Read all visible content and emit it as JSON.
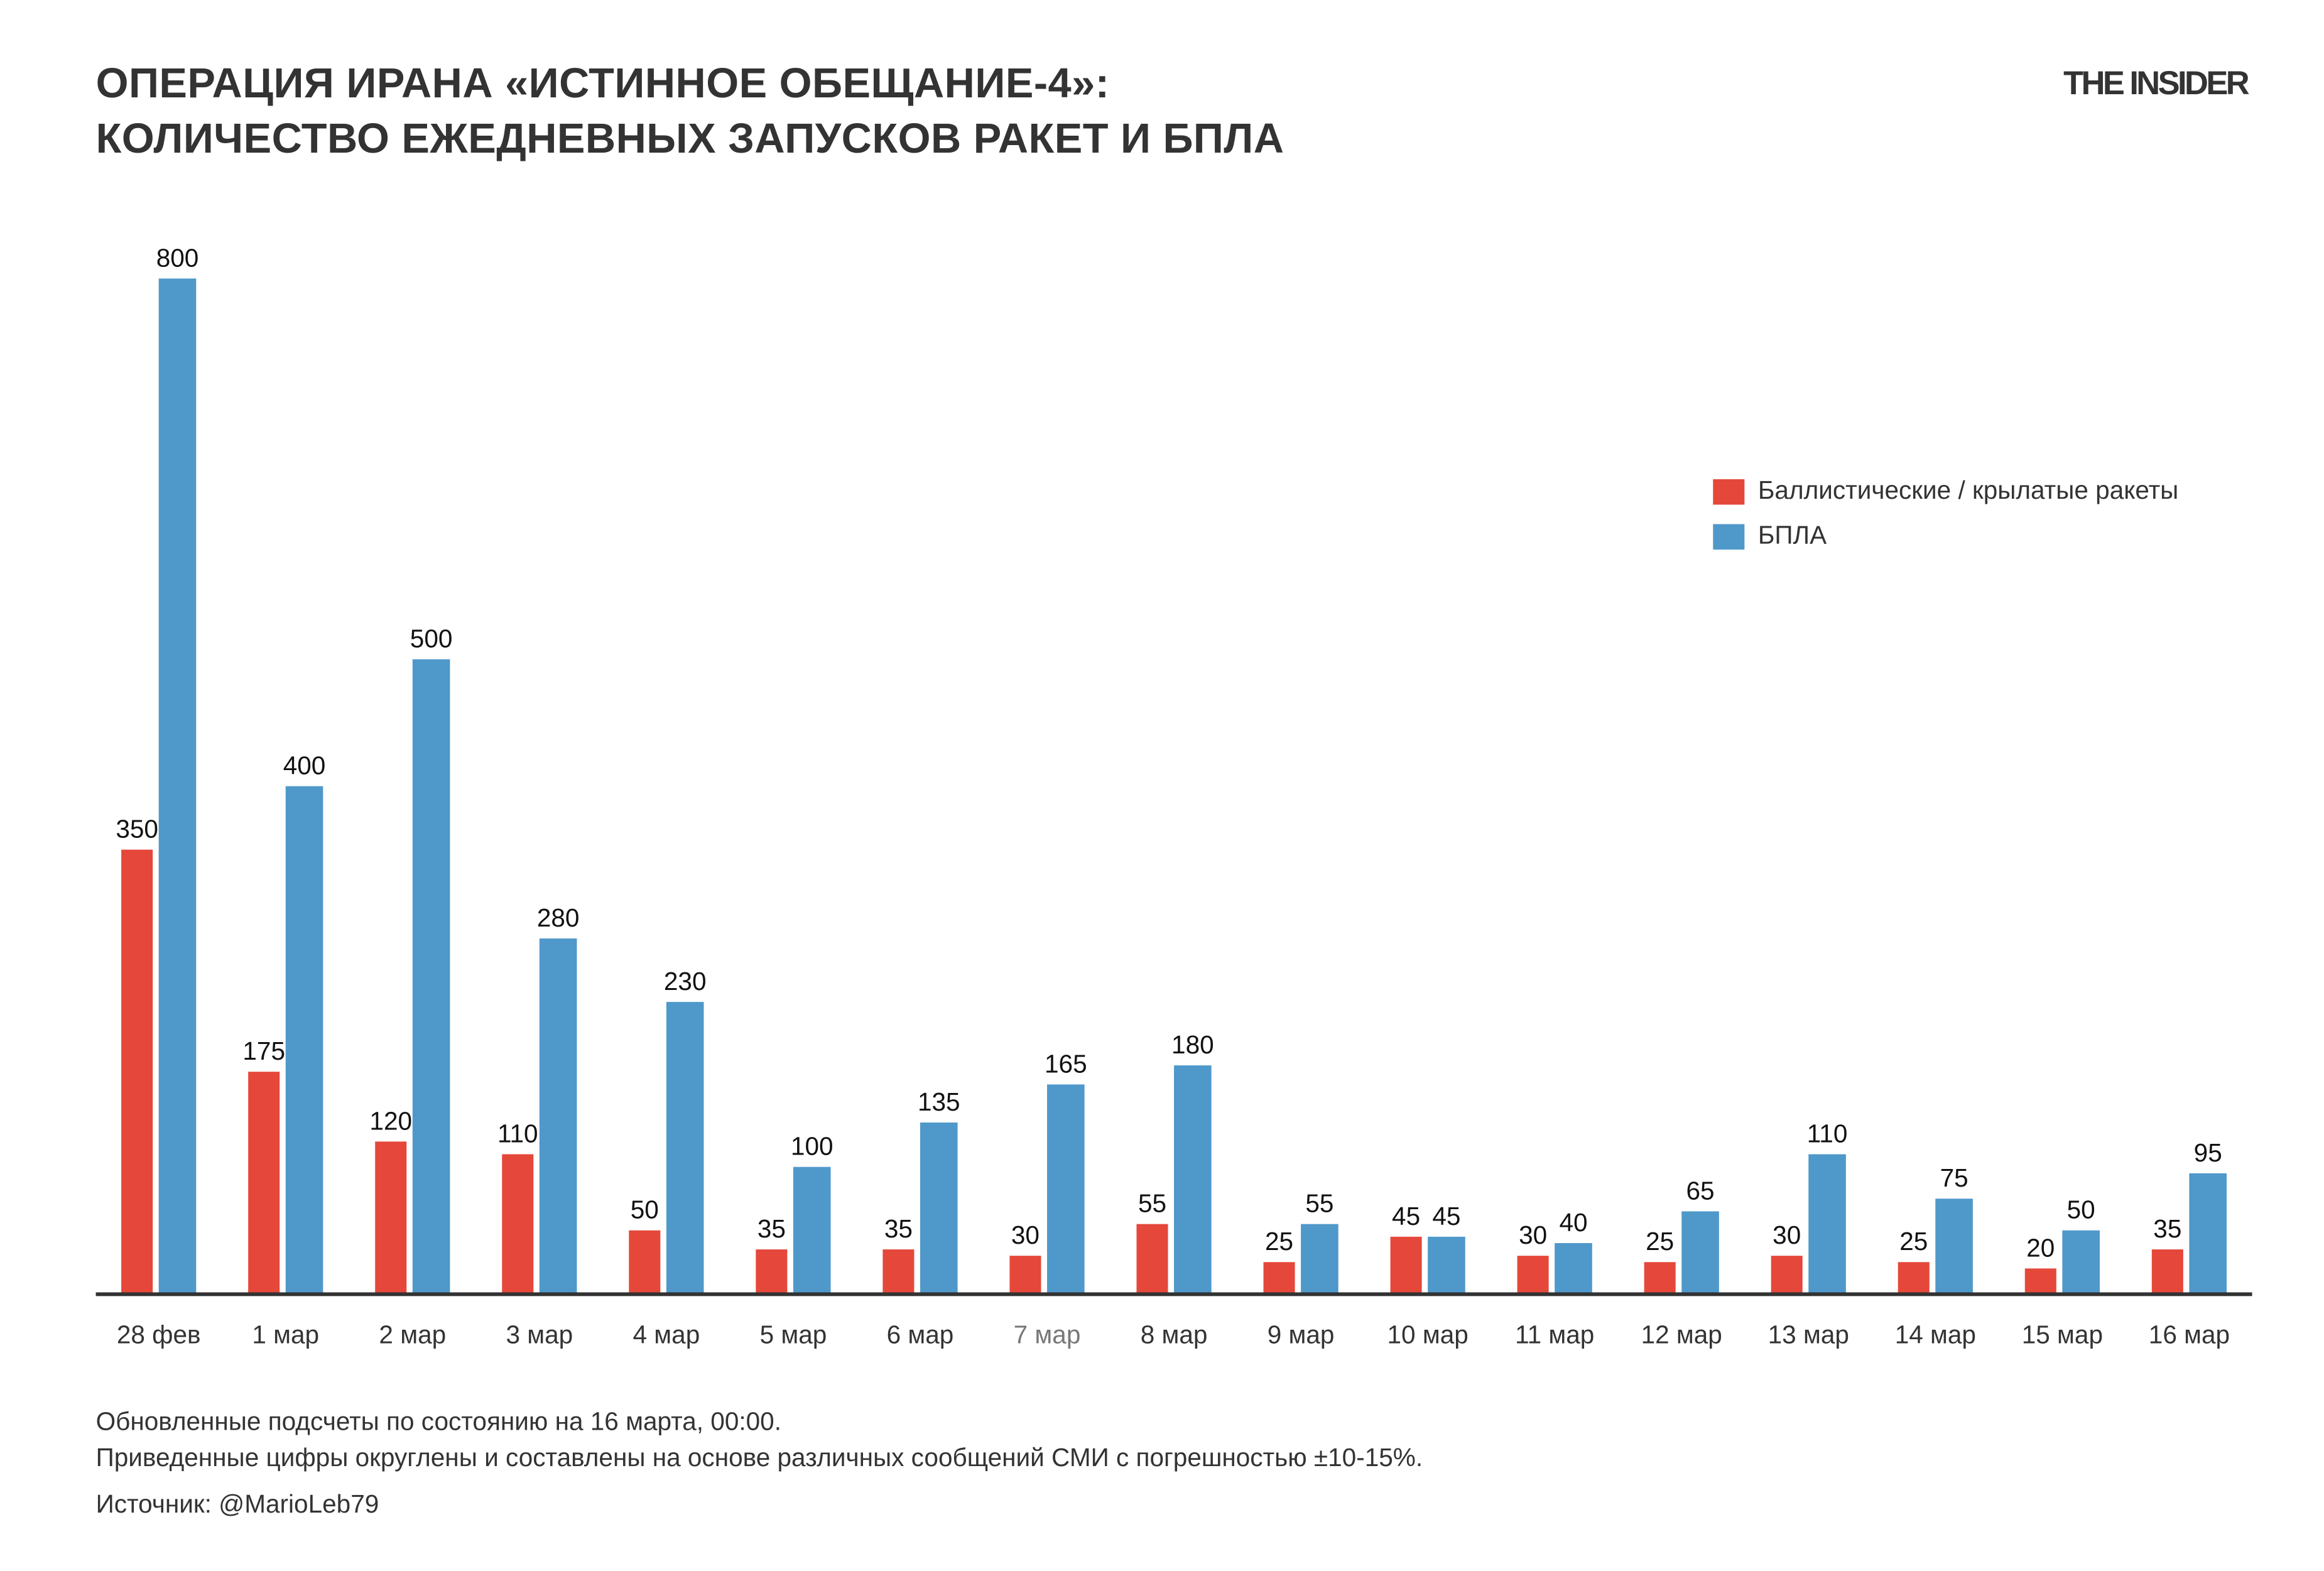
{
  "header": {
    "title_line1": "ОПЕРАЦИЯ ИРАНА «ИСТИННОЕ ОБЕЩАНИЕ-4»:",
    "title_line2": "КОЛИЧЕСТВО ЕЖЕДНЕВНЫХ ЗАПУСКОВ РАКЕТ И БПЛА",
    "logo": "THE INSIDER"
  },
  "footer": {
    "note1": "Обновленные подсчеты по состоянию на 16 марта, 00:00.",
    "note2": "Приведенные цифры округлены и составлены на основе различных сообщений СМИ с погрешностью ±10-15%.",
    "source": "Источник: @MarioLeb79"
  },
  "chart_data": {
    "type": "bar",
    "title": "ОПЕРАЦИЯ ИРАНА «ИСТИННОЕ ОБЕЩАНИЕ-4»: КОЛИЧЕСТВО ЕЖЕДНЕВНЫХ ЗАПУСКОВ РАКЕТ И БПЛА",
    "categories": [
      "28 фев",
      "1 мар",
      "2 мар",
      "3 мар",
      "4 мар",
      "5 мар",
      "6 мар",
      "7 мар",
      "8 мар",
      "9 мар",
      "10 мар",
      "11 мар",
      "12 мар",
      "13 мар",
      "14 мар",
      "15 мар",
      "16 мар"
    ],
    "series": [
      {
        "name": "Баллистические / крылатые ракеты",
        "color": "#e5483a",
        "values": [
          350,
          175,
          120,
          110,
          50,
          35,
          35,
          30,
          55,
          25,
          45,
          30,
          25,
          30,
          25,
          20,
          35
        ]
      },
      {
        "name": "БПЛА",
        "color": "#4f98ca",
        "values": [
          800,
          400,
          500,
          280,
          230,
          100,
          135,
          165,
          180,
          55,
          45,
          40,
          65,
          110,
          75,
          50,
          95
        ]
      }
    ],
    "ylim": [
      0,
      800
    ],
    "grid": false,
    "legend": "right",
    "data_labels": true
  }
}
